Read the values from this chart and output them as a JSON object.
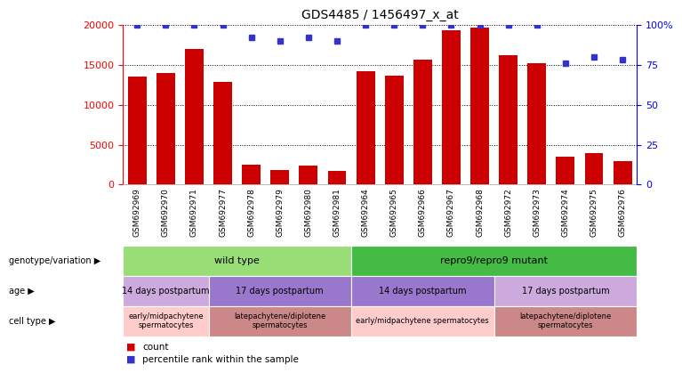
{
  "title": "GDS4485 / 1456497_x_at",
  "samples": [
    "GSM692969",
    "GSM692970",
    "GSM692971",
    "GSM692977",
    "GSM692978",
    "GSM692979",
    "GSM692980",
    "GSM692981",
    "GSM692964",
    "GSM692965",
    "GSM692966",
    "GSM692967",
    "GSM692968",
    "GSM692972",
    "GSM692973",
    "GSM692974",
    "GSM692975",
    "GSM692976"
  ],
  "counts": [
    13500,
    14000,
    17000,
    12800,
    2500,
    1800,
    2400,
    1700,
    14200,
    13600,
    15600,
    19300,
    19600,
    16200,
    15200,
    3500,
    4000,
    3000
  ],
  "percentiles": [
    100,
    100,
    100,
    100,
    92,
    90,
    92,
    90,
    100,
    100,
    100,
    100,
    100,
    100,
    100,
    76,
    80,
    78
  ],
  "bar_color": "#cc0000",
  "dot_color": "#3333cc",
  "ylim_left": [
    0,
    20000
  ],
  "ylim_right": [
    0,
    100
  ],
  "yticks_left": [
    0,
    5000,
    10000,
    15000,
    20000
  ],
  "yticks_right": [
    0,
    25,
    50,
    75,
    100
  ],
  "ytick_labels_right": [
    "0",
    "25",
    "50",
    "75",
    "100%"
  ],
  "genotype_groups": [
    {
      "label": "wild type",
      "start": 0,
      "end": 8,
      "color": "#99dd77"
    },
    {
      "label": "repro9/repro9 mutant",
      "start": 8,
      "end": 18,
      "color": "#44bb44"
    }
  ],
  "age_groups": [
    {
      "label": "14 days postpartum",
      "start": 0,
      "end": 3,
      "color": "#ccaadd"
    },
    {
      "label": "17 days postpartum",
      "start": 3,
      "end": 8,
      "color": "#9977cc"
    },
    {
      "label": "14 days postpartum",
      "start": 8,
      "end": 13,
      "color": "#9977cc"
    },
    {
      "label": "17 days postpartum",
      "start": 13,
      "end": 18,
      "color": "#ccaadd"
    }
  ],
  "celltype_groups": [
    {
      "label": "early/midpachytene\nspermatocytes",
      "start": 0,
      "end": 3,
      "color": "#ffcccc"
    },
    {
      "label": "latepachytene/diplotene\nspermatocytes",
      "start": 3,
      "end": 8,
      "color": "#cc8888"
    },
    {
      "label": "early/midpachytene spermatocytes",
      "start": 8,
      "end": 13,
      "color": "#ffcccc"
    },
    {
      "label": "latepachytene/diplotene\nspermatocytes",
      "start": 13,
      "end": 18,
      "color": "#cc8888"
    }
  ],
  "row_labels": [
    "genotype/variation",
    "age",
    "cell type"
  ],
  "xtick_bg": "#d8d8d8",
  "bg_color": "#ffffff"
}
